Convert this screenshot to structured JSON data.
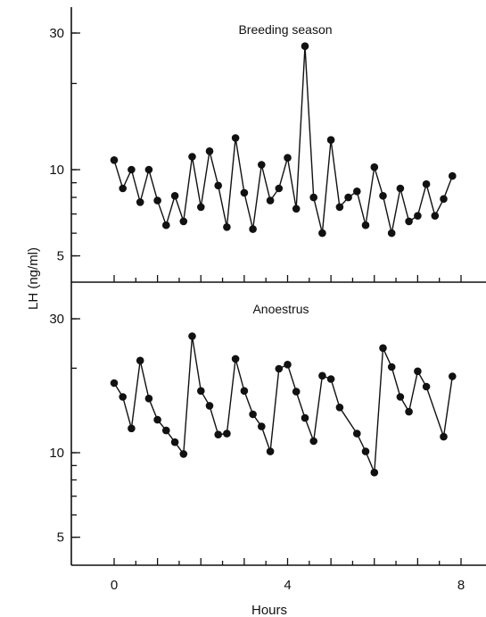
{
  "chart_data": {
    "type": "line",
    "xlabel": "Hours",
    "ylabel": "LH (ng/ml)",
    "x_ticks": [
      0,
      4,
      8
    ],
    "x_minor_step": 0.5,
    "xlim": [
      -1,
      8.5
    ],
    "y_scale": "log",
    "grid": false,
    "panels": [
      {
        "title": "Breeding season",
        "y_ticks": [
          5,
          10,
          30
        ],
        "ylim": [
          4.3,
          35
        ],
        "series": [
          {
            "marker": "filled-circle",
            "x": [
              0.0,
              0.2,
              0.4,
              0.6,
              0.8,
              1.0,
              1.2,
              1.4,
              1.6,
              1.8,
              2.0,
              2.2,
              2.4,
              2.6,
              2.8,
              3.0,
              3.2,
              3.4,
              3.6,
              3.8,
              4.0,
              4.2,
              4.4,
              4.6,
              4.8,
              5.0,
              5.2,
              5.4,
              5.6,
              5.8,
              6.0,
              6.2,
              6.4,
              6.6,
              6.8,
              7.0,
              7.2,
              7.4,
              7.6,
              7.8
            ],
            "y": [
              10.8,
              8.6,
              10.0,
              7.7,
              10.0,
              7.8,
              6.4,
              8.1,
              6.6,
              11.1,
              7.4,
              11.6,
              8.8,
              6.3,
              12.9,
              8.3,
              6.2,
              10.4,
              7.8,
              8.6,
              11.0,
              7.3,
              27.0,
              8.0,
              6.0,
              12.7,
              7.4,
              8.0,
              8.4,
              6.4,
              10.2,
              8.1,
              6.0,
              8.6,
              6.6,
              6.9,
              8.9,
              6.9,
              7.9,
              9.5
            ]
          }
        ]
      },
      {
        "title": "Anoestrus",
        "y_ticks": [
          5,
          10,
          30
        ],
        "ylim": [
          4.3,
          35
        ],
        "series": [
          {
            "marker": "filled-circle",
            "x": [
              0.0,
              0.2,
              0.4,
              0.6,
              0.8,
              1.0,
              1.2,
              1.4,
              1.6,
              1.8,
              2.0,
              2.2,
              2.4,
              2.6,
              2.8,
              3.0,
              3.2,
              3.4,
              3.6,
              3.8,
              4.0,
              4.2,
              4.4,
              4.6,
              4.8,
              5.0,
              5.2,
              5.6,
              5.8,
              6.0,
              6.2,
              6.4,
              6.6,
              6.8,
              7.0,
              7.2,
              7.6,
              7.8
            ],
            "y": [
              17.7,
              15.8,
              12.2,
              21.3,
              15.6,
              13.1,
              12.0,
              10.9,
              9.9,
              26.0,
              16.6,
              14.7,
              11.6,
              11.7,
              21.6,
              16.6,
              13.7,
              12.4,
              10.1,
              19.9,
              20.6,
              16.5,
              13.3,
              11.0,
              18.8,
              18.3,
              14.5,
              11.7,
              10.1,
              8.5,
              23.6,
              20.2,
              15.8,
              14.0,
              19.5,
              17.2,
              11.4,
              18.7
            ]
          }
        ]
      }
    ]
  }
}
